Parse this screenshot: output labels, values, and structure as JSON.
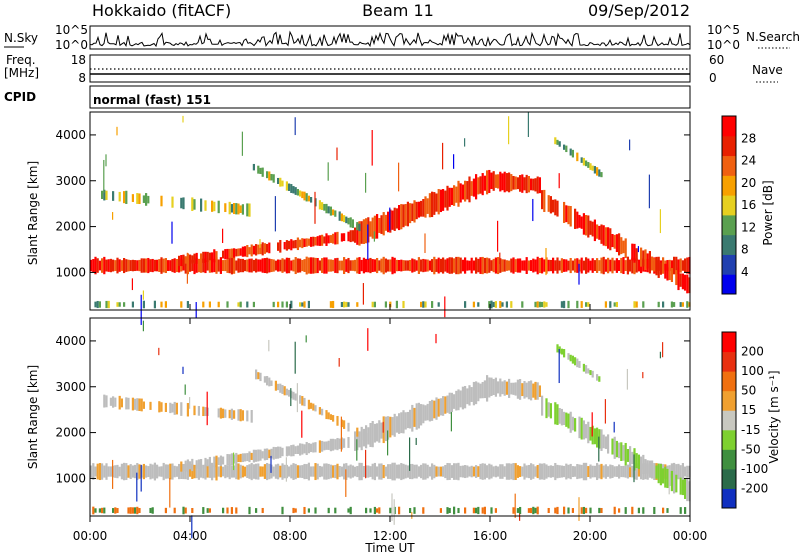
{
  "header": {
    "left": "Hokkaido (fitACF)",
    "center": "Beam 11",
    "right": "09/Sep/2012"
  },
  "top_panels": {
    "nsky_label": "N.Sky",
    "nsky_ticks": [
      "10^5",
      "10^0"
    ],
    "nsearch_label": "N.Search",
    "freq_label_1": "Freq.",
    "freq_label_2": "[MHz]",
    "freq_ticks": [
      "18",
      "8"
    ],
    "nave_label": "Nave",
    "nave_ticks": [
      "60",
      "0"
    ],
    "cpid_label": "CPID",
    "cpid_text": "normal (fast) 151"
  },
  "colors": {
    "power_scale": [
      "#0000ee",
      "#2040b0",
      "#3a7a70",
      "#5aa050",
      "#e6d020",
      "#f7a000",
      "#f06010",
      "#e82000",
      "#ff0000"
    ],
    "velocity_scale": [
      "#1030c0",
      "#2b6b4a",
      "#3f8f3f",
      "#7ed030",
      "#c8c8c0",
      "#f0a030",
      "#f07010",
      "#e83010",
      "#ff0000"
    ],
    "ground_scatter": "#bdbdbd"
  },
  "chart_data": {
    "type": "heatmap",
    "x_axis": {
      "label": "Time UT",
      "ticks": [
        "00:00",
        "04:00",
        "08:00",
        "12:00",
        "16:00",
        "20:00",
        "00:00"
      ],
      "range_hours": [
        0,
        24
      ]
    },
    "y_axis": {
      "label": "Slant Range [km]",
      "ticks": [
        1000,
        2000,
        3000,
        4000
      ],
      "range_km": [
        180,
        4500
      ]
    },
    "power": {
      "colorbar_label": "Power [dB]",
      "colorbar_ticks": [
        "28",
        "24",
        "20",
        "16",
        "12",
        "8",
        "4"
      ]
    },
    "velocity": {
      "colorbar_label": "Velocity [m s⁻¹]",
      "colorbar_ticks": [
        "200",
        "100",
        "50",
        "15",
        "-15",
        "-50",
        "-100",
        "-200"
      ]
    }
  }
}
